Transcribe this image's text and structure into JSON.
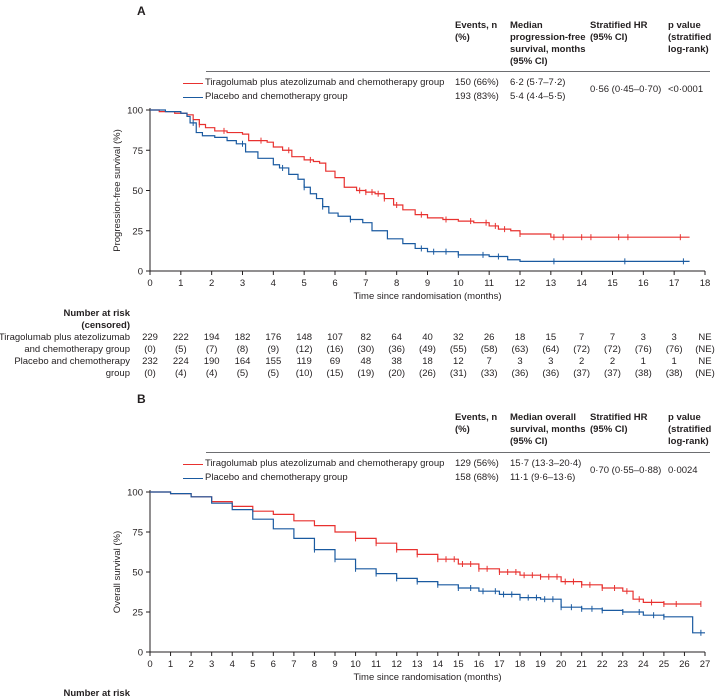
{
  "colors": {
    "tira": "#e8312f",
    "placebo": "#1a5aa0",
    "axis": "#231f20",
    "rule": "#6d6e71"
  },
  "panelA": {
    "label": "A",
    "headers": {
      "events": "Events, n (%)",
      "median": "Median progression-free survival, months (95% CI)",
      "hr": "Stratified HR (95% CI)",
      "p": "p value (stratified log-rank)"
    },
    "rows": [
      {
        "name": "Tiragolumab plus atezolizumab and chemotherapy group",
        "events": "150 (66%)",
        "median": "6·2 (5·7–7·2)"
      },
      {
        "name": "Placebo and chemotherapy group",
        "events": "193 (83%)",
        "median": "5·4 (4·4–5·5)"
      }
    ],
    "hr": "0·56 (0·45–0·70)",
    "p": "<0·0001",
    "risk": {
      "title": "Number at risk",
      "censored_title": "(censored)",
      "row1_label_a": "Tiragolumab plus atezolizumab",
      "row1_label_b": "and chemotherapy group",
      "row2_label_a": "Placebo and chemotherapy",
      "row2_label_b": "group",
      "tira_n": [
        "229",
        "222",
        "194",
        "182",
        "176",
        "148",
        "107",
        "82",
        "64",
        "40",
        "32",
        "26",
        "18",
        "15",
        "7",
        "7",
        "3",
        "3",
        "NE"
      ],
      "tira_c": [
        "(0)",
        "(5)",
        "(7)",
        "(8)",
        "(9)",
        "(12)",
        "(16)",
        "(30)",
        "(36)",
        "(49)",
        "(55)",
        "(58)",
        "(63)",
        "(64)",
        "(72)",
        "(72)",
        "(76)",
        "(76)",
        "(NE)"
      ],
      "placebo_n": [
        "232",
        "224",
        "190",
        "164",
        "155",
        "119",
        "69",
        "48",
        "38",
        "18",
        "12",
        "7",
        "3",
        "3",
        "2",
        "2",
        "1",
        "1",
        "NE"
      ],
      "placebo_c": [
        "(0)",
        "(4)",
        "(4)",
        "(5)",
        "(5)",
        "(10)",
        "(15)",
        "(19)",
        "(20)",
        "(26)",
        "(31)",
        "(33)",
        "(36)",
        "(36)",
        "(37)",
        "(37)",
        "(38)",
        "(38)",
        "(NE)"
      ]
    }
  },
  "panelB": {
    "label": "B",
    "headers": {
      "events": "Events, n (%)",
      "median": "Median overall survival, months (95% CI)",
      "hr": "Stratified HR (95% CI)",
      "p": "p value (stratified log-rank)"
    },
    "rows": [
      {
        "name": "Tiragolumab plus atezolizumab and chemotherapy group",
        "events": "129 (56%)",
        "median": "15·7 (13·3–20·4)"
      },
      {
        "name": "Placebo and chemotherapy group",
        "events": "158 (68%)",
        "median": "11·1 (9·6–13·6)"
      }
    ],
    "hr": "0·70 (0·55–0·88)",
    "p": "0·0024",
    "risk_title": "Number at risk"
  },
  "chart_data": [
    {
      "type": "line",
      "title": "Progression-free survival",
      "xlabel": "Time since randomisation (months)",
      "ylabel": "Progression-free survival (%)",
      "xlim": [
        0,
        18
      ],
      "ylim": [
        0,
        100
      ],
      "xticks": [
        0,
        1,
        2,
        3,
        4,
        5,
        6,
        7,
        8,
        9,
        10,
        11,
        12,
        13,
        14,
        15,
        16,
        17,
        18
      ],
      "yticks": [
        0,
        25,
        50,
        75,
        100
      ],
      "series": [
        {
          "name": "Tiragolumab plus atezolizumab and chemotherapy group",
          "color": "#e8312f",
          "x": [
            0,
            0.3,
            0.8,
            1.2,
            1.4,
            1.6,
            1.8,
            2.1,
            2.5,
            3.0,
            3.2,
            3.8,
            4.0,
            4.3,
            4.6,
            5.0,
            5.3,
            5.5,
            5.7,
            6.0,
            6.3,
            6.7,
            7.0,
            7.3,
            7.6,
            7.9,
            8.2,
            8.6,
            9.0,
            9.5,
            10.0,
            10.5,
            11.0,
            11.3,
            11.7,
            12.0,
            13.0,
            14.0,
            15.0,
            16.0,
            17.0,
            17.5
          ],
          "y": [
            100,
            99,
            98,
            97,
            94,
            91,
            89,
            87,
            86,
            85,
            81,
            80,
            77,
            75,
            71,
            69,
            68,
            67,
            62,
            58,
            52,
            50,
            49,
            48,
            45,
            41,
            38,
            35,
            33,
            32,
            31,
            30,
            28,
            26,
            25,
            23,
            21,
            21,
            21,
            21,
            21,
            21
          ],
          "censor_x": [
            1.6,
            2.4,
            3.6,
            4.5,
            5.2,
            6.8,
            7.0,
            7.2,
            7.4,
            7.6,
            8.0,
            8.8,
            9.6,
            10.4,
            10.9,
            11.2,
            11.5,
            12.0,
            13.1,
            13.4,
            14.0,
            14.3,
            15.2,
            15.5,
            17.2
          ]
        },
        {
          "name": "Placebo and chemotherapy group",
          "color": "#1a5aa0",
          "x": [
            0,
            0.5,
            1.0,
            1.2,
            1.3,
            1.5,
            1.7,
            2.1,
            2.5,
            2.8,
            3.1,
            3.5,
            4.0,
            4.2,
            4.5,
            4.8,
            5.0,
            5.2,
            5.4,
            5.6,
            5.8,
            6.1,
            6.5,
            6.9,
            7.2,
            7.7,
            8.2,
            8.6,
            9.0,
            10.0,
            11.0,
            11.6,
            12.0,
            14.0,
            16.0,
            17.5
          ],
          "y": [
            100,
            99,
            98,
            96,
            92,
            86,
            84,
            83,
            81,
            79,
            74,
            70,
            66,
            64,
            60,
            57,
            52,
            48,
            45,
            40,
            36,
            34,
            32,
            30,
            25,
            20,
            17,
            14,
            12,
            10,
            9,
            7,
            6,
            6,
            6,
            6
          ],
          "censor_x": [
            1.4,
            3.0,
            4.3,
            5.0,
            5.6,
            6.5,
            8.8,
            9.2,
            9.6,
            10.0,
            10.8,
            11.3,
            13.1,
            15.4,
            17.3
          ]
        }
      ]
    },
    {
      "type": "line",
      "title": "Overall survival",
      "xlabel": "Time since randomisation (months)",
      "ylabel": "Overall survival (%)",
      "xlim": [
        0,
        27
      ],
      "ylim": [
        0,
        100
      ],
      "xticks": [
        0,
        1,
        2,
        3,
        4,
        5,
        6,
        7,
        8,
        9,
        10,
        11,
        12,
        13,
        14,
        15,
        16,
        17,
        18,
        19,
        20,
        21,
        22,
        23,
        24,
        25,
        26,
        27
      ],
      "yticks": [
        0,
        25,
        50,
        75,
        100
      ],
      "series": [
        {
          "name": "Tiragolumab plus atezolizumab and chemotherapy group",
          "color": "#e8312f",
          "x": [
            0,
            1,
            2,
            3,
            4,
            5,
            6,
            7,
            8,
            9,
            10,
            11,
            12,
            13,
            14,
            15,
            16,
            17,
            18,
            19,
            20,
            21,
            22,
            23,
            23.5,
            24,
            25,
            26,
            26.8
          ],
          "y": [
            100,
            99,
            97,
            94,
            91,
            88,
            86,
            82,
            79,
            75,
            71,
            68,
            64,
            61,
            58,
            55,
            52,
            50,
            48,
            47,
            44,
            42,
            40,
            38,
            33,
            31,
            30,
            30,
            30
          ],
          "censor_x": [
            10,
            11,
            12,
            13,
            14,
            14.4,
            14.8,
            15.2,
            15.6,
            16,
            16.4,
            17,
            17.4,
            17.8,
            18.2,
            18.6,
            19,
            19.4,
            19.8,
            20.2,
            20.6,
            21,
            21.4,
            22,
            22.6,
            23.2,
            23.8,
            24.4,
            25,
            25.6,
            26.8
          ]
        },
        {
          "name": "Placebo and chemotherapy group",
          "color": "#1a5aa0",
          "x": [
            0,
            1,
            2,
            3,
            4,
            5,
            6,
            7,
            8,
            9,
            10,
            11,
            12,
            13,
            14,
            15,
            16,
            17,
            18,
            19,
            20,
            21,
            22,
            23,
            24,
            25,
            26,
            26.4,
            27
          ],
          "y": [
            100,
            99,
            97,
            93,
            89,
            83,
            77,
            71,
            64,
            58,
            52,
            49,
            46,
            44,
            42,
            40,
            38,
            36,
            34,
            33,
            28,
            27,
            26,
            25,
            23,
            22,
            22,
            12,
            12
          ],
          "censor_x": [
            8,
            9,
            10,
            11,
            12,
            13,
            14,
            15,
            15.6,
            16.2,
            16.8,
            17.2,
            17.6,
            18,
            18.4,
            18.8,
            19.2,
            19.6,
            20,
            20.5,
            21,
            21.5,
            22,
            23,
            23.8,
            24.5,
            25,
            26.8
          ]
        }
      ]
    }
  ]
}
